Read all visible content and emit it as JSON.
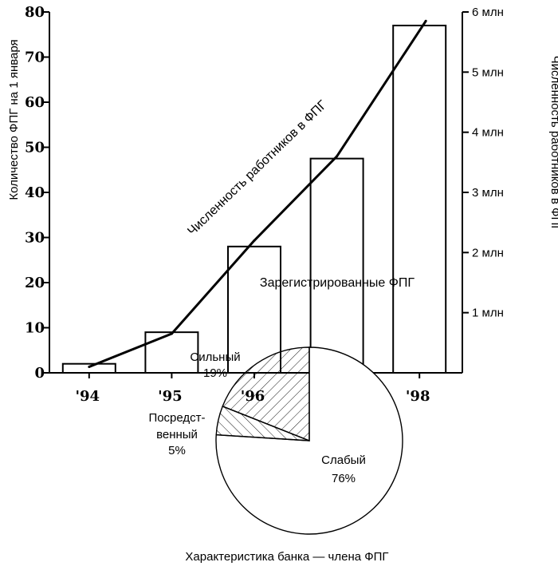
{
  "chart_data": [
    {
      "type": "bar+line",
      "categories": [
        "'94",
        "'95",
        "'96",
        "'97",
        "'98"
      ],
      "series": [
        {
          "name": "Зарегистрированные ФПГ",
          "axis": "left",
          "values": [
            2,
            9,
            28,
            47.5,
            77
          ]
        },
        {
          "name": "Численность работников в ФПГ",
          "axis": "right",
          "values": [
            0.1,
            0.65,
            2.2,
            3.6,
            5.85
          ]
        }
      ],
      "ylabel": "Количество ФПГ на 1 января",
      "ylim": [
        0,
        80
      ],
      "yticks": [
        "0",
        "10",
        "20",
        "30",
        "40",
        "50",
        "60",
        "70",
        "80"
      ],
      "y2label": "Численность работников в ФПГ",
      "y2lim": [
        0,
        6
      ],
      "y2ticks": [
        "1 млн",
        "2 млн",
        "3 млн",
        "4 млн",
        "5 млн",
        "6 млн"
      ],
      "annotations": {
        "line_label": "Численность работников в ФПГ",
        "bar_label": "Зарегистрированные ФПГ"
      },
      "grid": false
    },
    {
      "type": "pie",
      "title": "Характеристика банка — члена ФПГ",
      "slices": [
        {
          "label": "Слабый",
          "pct_label": "76%",
          "value": 76,
          "pattern": "none"
        },
        {
          "label": "Посредст-венный",
          "label_lines": [
            "Посредст-",
            "венный"
          ],
          "pct_label": "5%",
          "value": 5,
          "pattern": "hatch-back"
        },
        {
          "label": "Сильный",
          "pct_label": "19%",
          "value": 19,
          "pattern": "hatch-fwd"
        }
      ]
    }
  ]
}
